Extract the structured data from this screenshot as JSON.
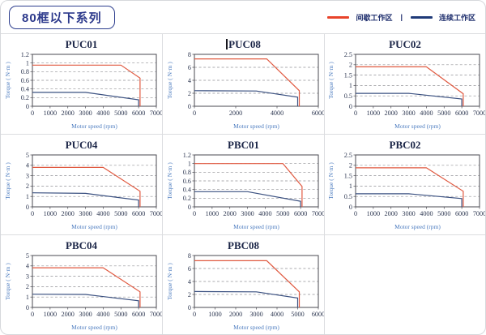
{
  "header": {
    "series_badge": "80框以下系列",
    "legend": [
      {
        "label": "间歇工作区",
        "color": "#e8432a"
      },
      {
        "label": "连续工作区",
        "color": "#1f3a78"
      }
    ],
    "legend_separator": "|"
  },
  "colors": {
    "chart_red": "#e05a41",
    "chart_blue": "#3a5080",
    "frame": "#4a4a52",
    "grid_dash": "#909095",
    "tick_text": "#2c3650",
    "axis_label_text": "#4e7dc0",
    "cell_border": "#dcdde0",
    "badge_navy": "#2d3e8e"
  },
  "chart_data": [
    {
      "type": "line",
      "title": "PUC01",
      "title_cursor": false,
      "xlabel": "Motor speed (rpm)",
      "ylabel": "Torque ( N·m )",
      "xlim": [
        0,
        7000
      ],
      "xtick_step": 1000,
      "ylim": [
        0,
        1.2
      ],
      "ytick_step": 0.2,
      "grid": "dashed-horizontal",
      "legend_position": "none",
      "series": [
        {
          "name": "间歇工作区",
          "color_key": "chart_red",
          "points": [
            [
              0,
              0.95
            ],
            [
              5000,
              0.95
            ],
            [
              6080,
              0.65
            ],
            [
              6080,
              0
            ]
          ]
        },
        {
          "name": "连续工作区",
          "color_key": "chart_blue",
          "points": [
            [
              0,
              0.32
            ],
            [
              3000,
              0.32
            ],
            [
              6000,
              0.15
            ],
            [
              6000,
              0
            ]
          ]
        }
      ]
    },
    {
      "type": "line",
      "title": "PUC08",
      "title_cursor": true,
      "xlabel": "Motor speed (rpm)",
      "ylabel": "Torque ( N·m )",
      "xlim": [
        0,
        6000
      ],
      "xtick_step": 2000,
      "ylim": [
        0,
        8
      ],
      "ytick_step": 2,
      "grid": "dashed-horizontal",
      "legend_position": "none",
      "series": [
        {
          "name": "间歇工作区",
          "color_key": "chart_red",
          "points": [
            [
              0,
              7.3
            ],
            [
              3500,
              7.3
            ],
            [
              5080,
              2.4
            ],
            [
              5080,
              0
            ]
          ]
        },
        {
          "name": "连续工作区",
          "color_key": "chart_blue",
          "points": [
            [
              0,
              2.4
            ],
            [
              3000,
              2.35
            ],
            [
              5000,
              1.4
            ],
            [
              5000,
              0
            ]
          ]
        }
      ]
    },
    {
      "type": "line",
      "title": "PUC02",
      "title_cursor": false,
      "xlabel": "Motor speed (rpm)",
      "ylabel": "Torque ( N·m )",
      "xlim": [
        0,
        7000
      ],
      "xtick_step": 1000,
      "ylim": [
        0,
        2.5
      ],
      "ytick_step": 0.5,
      "grid": "dashed-horizontal",
      "legend_position": "none",
      "series": [
        {
          "name": "间歇工作区",
          "color_key": "chart_red",
          "points": [
            [
              0,
              1.9
            ],
            [
              4000,
              1.9
            ],
            [
              6080,
              0.6
            ],
            [
              6080,
              0
            ]
          ]
        },
        {
          "name": "连续工作区",
          "color_key": "chart_blue",
          "points": [
            [
              0,
              0.62
            ],
            [
              3000,
              0.62
            ],
            [
              6000,
              0.35
            ],
            [
              6000,
              0
            ]
          ]
        }
      ]
    },
    {
      "type": "line",
      "title": "PUC04",
      "title_cursor": false,
      "xlabel": "Motor speed (rpm)",
      "ylabel": "Torque ( N·m )",
      "xlim": [
        0,
        7000
      ],
      "xtick_step": 1000,
      "ylim": [
        0,
        5
      ],
      "ytick_step": 1,
      "grid": "dashed-horizontal",
      "legend_position": "none",
      "series": [
        {
          "name": "间歇工作区",
          "color_key": "chart_red",
          "points": [
            [
              0,
              3.8
            ],
            [
              4000,
              3.8
            ],
            [
              6080,
              1.5
            ],
            [
              6080,
              0
            ]
          ]
        },
        {
          "name": "连续工作区",
          "color_key": "chart_blue",
          "points": [
            [
              0,
              1.35
            ],
            [
              3000,
              1.3
            ],
            [
              6000,
              0.65
            ],
            [
              6000,
              0
            ]
          ]
        }
      ]
    },
    {
      "type": "line",
      "title": "PBC01",
      "title_cursor": false,
      "xlabel": "Motor speed (rpm)",
      "ylabel": "Torque ( N·m )",
      "xlim": [
        0,
        7000
      ],
      "xtick_step": 1000,
      "ylim": [
        0,
        1.2
      ],
      "ytick_step": 0.2,
      "grid": "dashed-horizontal",
      "legend_position": "none",
      "series": [
        {
          "name": "间歇工作区",
          "color_key": "chart_red",
          "points": [
            [
              0,
              1.0
            ],
            [
              5000,
              1.0
            ],
            [
              6080,
              0.47
            ],
            [
              6080,
              0
            ]
          ]
        },
        {
          "name": "连续工作区",
          "color_key": "chart_blue",
          "points": [
            [
              0,
              0.35
            ],
            [
              3000,
              0.35
            ],
            [
              6000,
              0.13
            ],
            [
              6000,
              0
            ]
          ]
        }
      ]
    },
    {
      "type": "line",
      "title": "PBC02",
      "title_cursor": false,
      "xlabel": "Motor speed (rpm)",
      "ylabel": "Torque ( N·m )",
      "xlim": [
        0,
        7000
      ],
      "xtick_step": 1000,
      "ylim": [
        0,
        2.5
      ],
      "ytick_step": 0.5,
      "grid": "dashed-horizontal",
      "legend_position": "none",
      "series": [
        {
          "name": "间歇工作区",
          "color_key": "chart_red",
          "points": [
            [
              0,
              1.88
            ],
            [
              4000,
              1.88
            ],
            [
              6080,
              0.75
            ],
            [
              6080,
              0
            ]
          ]
        },
        {
          "name": "连续工作区",
          "color_key": "chart_blue",
          "points": [
            [
              0,
              0.63
            ],
            [
              3000,
              0.63
            ],
            [
              6000,
              0.4
            ],
            [
              6000,
              0
            ]
          ]
        }
      ]
    },
    {
      "type": "line",
      "title": "PBC04",
      "title_cursor": false,
      "xlabel": "Motor speed (rpm)",
      "ylabel": "Torque ( N·m )",
      "xlim": [
        0,
        7000
      ],
      "xtick_step": 1000,
      "ylim": [
        0,
        5
      ],
      "ytick_step": 1,
      "grid": "dashed-horizontal",
      "legend_position": "none",
      "series": [
        {
          "name": "间歇工作区",
          "color_key": "chart_red",
          "points": [
            [
              0,
              3.82
            ],
            [
              4000,
              3.82
            ],
            [
              6080,
              1.5
            ],
            [
              6080,
              0
            ]
          ]
        },
        {
          "name": "连续工作区",
          "color_key": "chart_blue",
          "points": [
            [
              0,
              1.27
            ],
            [
              3000,
              1.25
            ],
            [
              6000,
              0.64
            ],
            [
              6000,
              0
            ]
          ]
        }
      ]
    },
    {
      "type": "line",
      "title": "PBC08",
      "title_cursor": false,
      "xlabel": "Motor speed (rpm)",
      "ylabel": "Torque ( N·m )",
      "xlim": [
        0,
        6000
      ],
      "xtick_step": 1000,
      "ylim": [
        0,
        8
      ],
      "ytick_step": 2,
      "grid": "dashed-horizontal",
      "legend_position": "none",
      "series": [
        {
          "name": "间歇工作区",
          "color_key": "chart_red",
          "points": [
            [
              0,
              7.2
            ],
            [
              3500,
              7.2
            ],
            [
              5080,
              2.4
            ],
            [
              5080,
              0
            ]
          ]
        },
        {
          "name": "连续工作区",
          "color_key": "chart_blue",
          "points": [
            [
              0,
              2.45
            ],
            [
              3000,
              2.4
            ],
            [
              5000,
              1.45
            ],
            [
              5000,
              0
            ]
          ]
        }
      ]
    }
  ]
}
